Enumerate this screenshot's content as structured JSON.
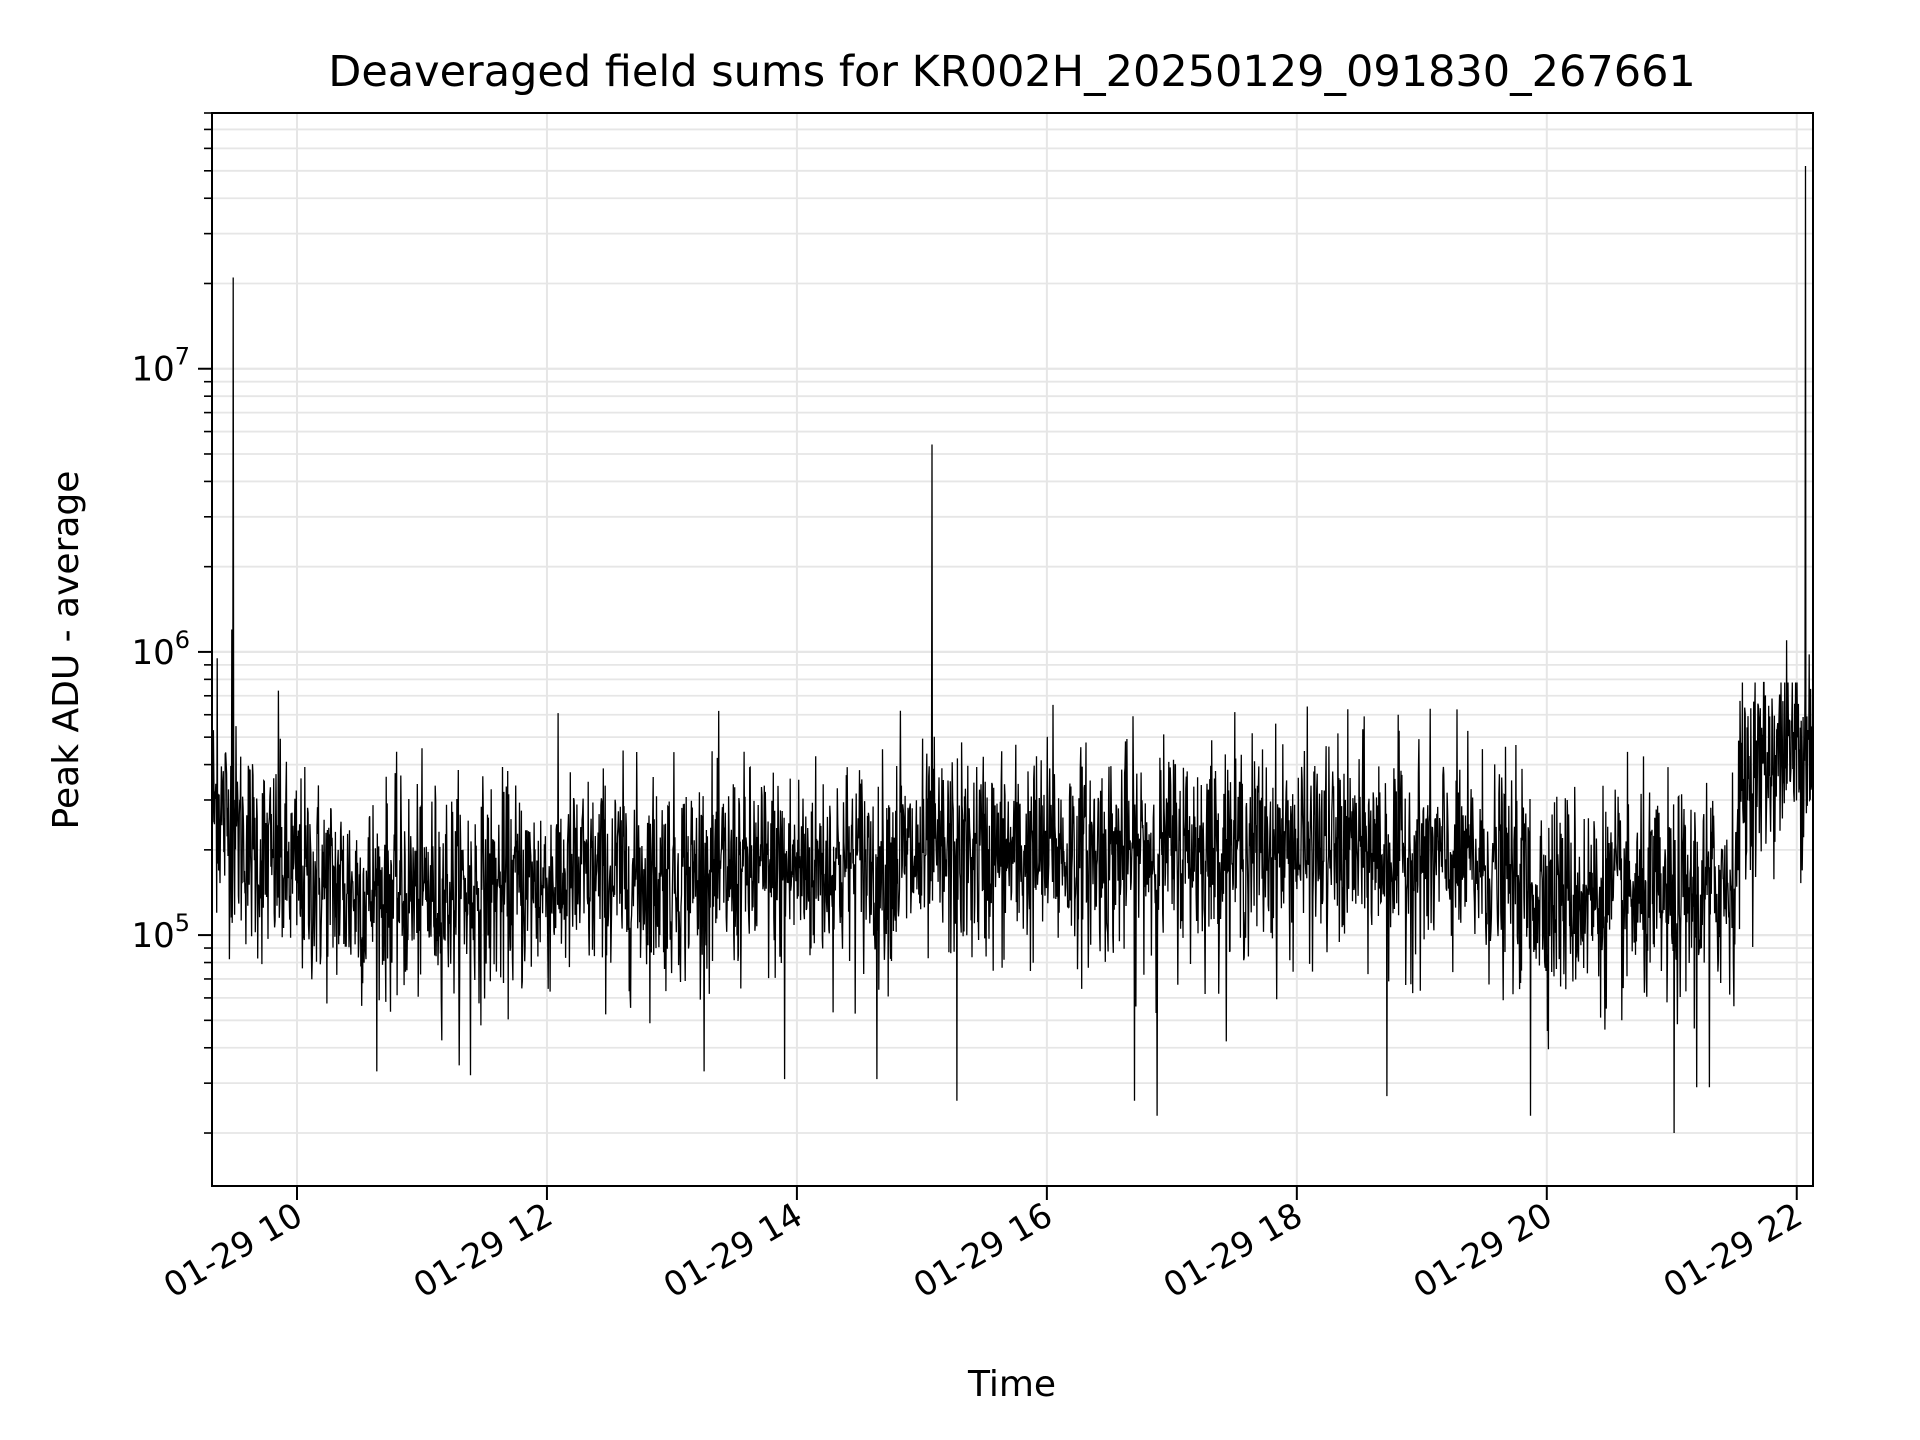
{
  "chart_data": {
    "type": "line",
    "title": "Deaveraged field sums for KR002H_20250129_091830_267661",
    "xlabel": "Time",
    "ylabel": "Peak ADU - average",
    "x_axis": {
      "type": "datetime",
      "range_hours": [
        9.32,
        22.13
      ],
      "ticks": [
        {
          "value": 10,
          "label": "01-29 10"
        },
        {
          "value": 12,
          "label": "01-29 12"
        },
        {
          "value": 14,
          "label": "01-29 14"
        },
        {
          "value": 16,
          "label": "01-29 16"
        },
        {
          "value": 18,
          "label": "01-29 18"
        },
        {
          "value": 20,
          "label": "01-29 20"
        },
        {
          "value": 22,
          "label": "01-29 22"
        }
      ]
    },
    "y_axis": {
      "scale": "log",
      "range": [
        13000,
        80000000
      ],
      "ticks": [
        {
          "value": 100000,
          "base": "10",
          "exp": "5"
        },
        {
          "value": 1000000,
          "base": "10",
          "exp": "6"
        },
        {
          "value": 10000000,
          "base": "10",
          "exp": "7"
        }
      ]
    },
    "grid": true,
    "line_color": "#000000",
    "baseline": [
      {
        "x": 9.32,
        "y": 300000
      },
      {
        "x": 9.45,
        "y": 250000
      },
      {
        "x": 9.7,
        "y": 190000
      },
      {
        "x": 10.0,
        "y": 160000
      },
      {
        "x": 10.5,
        "y": 140000
      },
      {
        "x": 11.5,
        "y": 145000
      },
      {
        "x": 12.5,
        "y": 160000
      },
      {
        "x": 13.5,
        "y": 165000
      },
      {
        "x": 14.5,
        "y": 180000
      },
      {
        "x": 15.5,
        "y": 190000
      },
      {
        "x": 16.5,
        "y": 195000
      },
      {
        "x": 17.5,
        "y": 205000
      },
      {
        "x": 18.5,
        "y": 200000
      },
      {
        "x": 19.5,
        "y": 175000
      },
      {
        "x": 20.0,
        "y": 140000
      },
      {
        "x": 20.5,
        "y": 135000
      },
      {
        "x": 21.0,
        "y": 130000
      },
      {
        "x": 21.5,
        "y": 155000
      },
      {
        "x": 21.55,
        "y": 330000
      },
      {
        "x": 21.8,
        "y": 430000
      },
      {
        "x": 22.13,
        "y": 470000
      }
    ],
    "spikes": [
      {
        "x": 9.49,
        "y": 21000000
      },
      {
        "x": 9.48,
        "y": 1200000
      },
      {
        "x": 9.36,
        "y": 950000
      },
      {
        "x": 9.85,
        "y": 730000
      },
      {
        "x": 15.08,
        "y": 5400000
      },
      {
        "x": 14.83,
        "y": 620000
      },
      {
        "x": 16.05,
        "y": 650000
      },
      {
        "x": 22.07,
        "y": 52000000
      },
      {
        "x": 22.1,
        "y": 980000
      },
      {
        "x": 21.92,
        "y": 1100000
      },
      {
        "x": 15.28,
        "y": 26000
      },
      {
        "x": 16.7,
        "y": 26000
      },
      {
        "x": 16.88,
        "y": 23000
      },
      {
        "x": 18.72,
        "y": 27000
      },
      {
        "x": 19.87,
        "y": 23000
      },
      {
        "x": 21.02,
        "y": 20000
      },
      {
        "x": 21.2,
        "y": 29000
      },
      {
        "x": 21.3,
        "y": 29000
      },
      {
        "x": 11.39,
        "y": 32000
      },
      {
        "x": 13.9,
        "y": 31000
      },
      {
        "x": 14.64,
        "y": 31000
      }
    ]
  }
}
